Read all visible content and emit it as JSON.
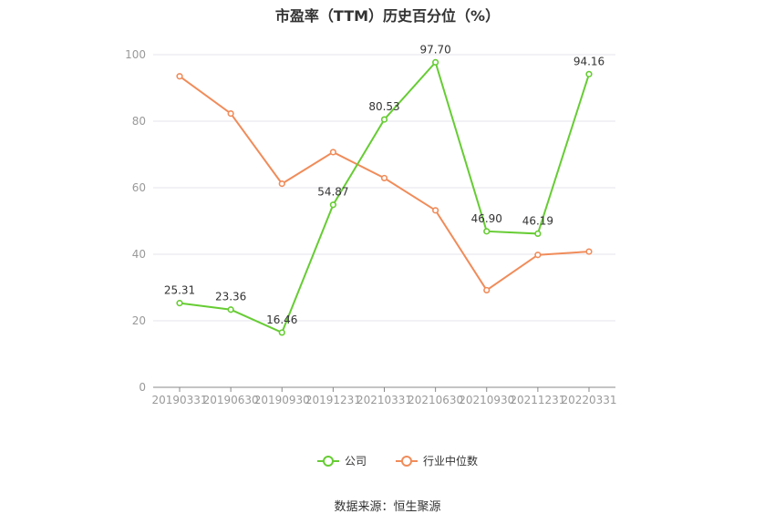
{
  "chart_data": {
    "type": "line",
    "title": "市盈率（TTM）历史百分位（%）",
    "categories": [
      "20190331",
      "20190630",
      "20190930",
      "20191231",
      "20210331",
      "20210630",
      "20210930",
      "20211231",
      "20220331"
    ],
    "series": [
      {
        "name": "公司",
        "color": "#66cc33",
        "values": [
          25.31,
          23.36,
          16.46,
          54.87,
          80.53,
          97.7,
          46.9,
          46.19,
          94.16
        ],
        "labels": [
          "25.31",
          "23.36",
          "16.46",
          "54.87",
          "80.53",
          "97.70",
          "46.90",
          "46.19",
          "94.16"
        ]
      },
      {
        "name": "行业中位数",
        "color": "#f08c5a",
        "values": [
          93.5,
          82.3,
          61.2,
          70.7,
          62.9,
          53.2,
          29.2,
          39.8,
          40.8
        ]
      }
    ],
    "ylim": [
      0,
      100
    ],
    "yticks": [
      0,
      20,
      40,
      60,
      80,
      100
    ],
    "grid": true,
    "legend": "bottom"
  },
  "source_text": "数据来源：恒生聚源"
}
